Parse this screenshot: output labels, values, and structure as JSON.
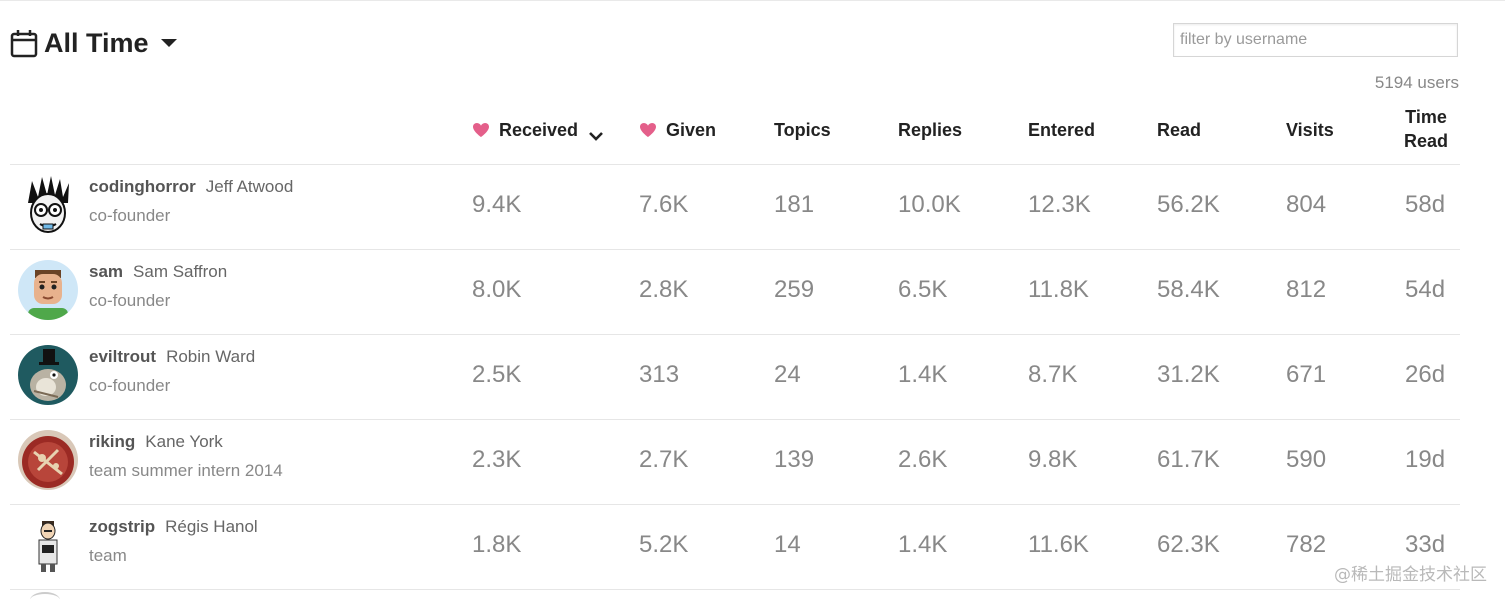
{
  "period": {
    "label": "All Time",
    "icon": "calendar-icon"
  },
  "filter": {
    "placeholder": "filter by username",
    "value": ""
  },
  "user_count": "5194 users",
  "columns": [
    {
      "key": "received",
      "label": "Received",
      "icon": "heart-icon",
      "sorted": true
    },
    {
      "key": "given",
      "label": "Given",
      "icon": "heart-icon"
    },
    {
      "key": "topics",
      "label": "Topics"
    },
    {
      "key": "replies",
      "label": "Replies"
    },
    {
      "key": "entered",
      "label": "Entered"
    },
    {
      "key": "read",
      "label": "Read"
    },
    {
      "key": "visits",
      "label": "Visits"
    },
    {
      "key": "time_read",
      "label_line1": "Time",
      "label_line2": "Read"
    }
  ],
  "colors": {
    "heart": "#e45f8a",
    "text_dark": "#222222",
    "text_muted": "#888888"
  },
  "rows": [
    {
      "username": "codinghorror",
      "name": "Jeff Atwood",
      "title": "co-founder",
      "received": "9.4K",
      "given": "7.6K",
      "topics": "181",
      "replies": "10.0K",
      "entered": "12.3K",
      "read": "56.2K",
      "visits": "804",
      "time_read": "58d"
    },
    {
      "username": "sam",
      "name": "Sam Saffron",
      "title": "co-founder",
      "received": "8.0K",
      "given": "2.8K",
      "topics": "259",
      "replies": "6.5K",
      "entered": "11.8K",
      "read": "58.4K",
      "visits": "812",
      "time_read": "54d"
    },
    {
      "username": "eviltrout",
      "name": "Robin Ward",
      "title": "co-founder",
      "received": "2.5K",
      "given": "313",
      "topics": "24",
      "replies": "1.4K",
      "entered": "8.7K",
      "read": "31.2K",
      "visits": "671",
      "time_read": "26d"
    },
    {
      "username": "riking",
      "name": "Kane York",
      "title": "team summer intern 2014",
      "received": "2.3K",
      "given": "2.7K",
      "topics": "139",
      "replies": "2.6K",
      "entered": "9.8K",
      "read": "61.7K",
      "visits": "590",
      "time_read": "19d"
    },
    {
      "username": "zogstrip",
      "name": "Régis Hanol",
      "title": "team",
      "received": "1.8K",
      "given": "5.2K",
      "topics": "14",
      "replies": "1.4K",
      "entered": "11.6K",
      "read": "62.3K",
      "visits": "782",
      "time_read": "33d"
    }
  ],
  "watermark": "@稀土掘金技术社区"
}
